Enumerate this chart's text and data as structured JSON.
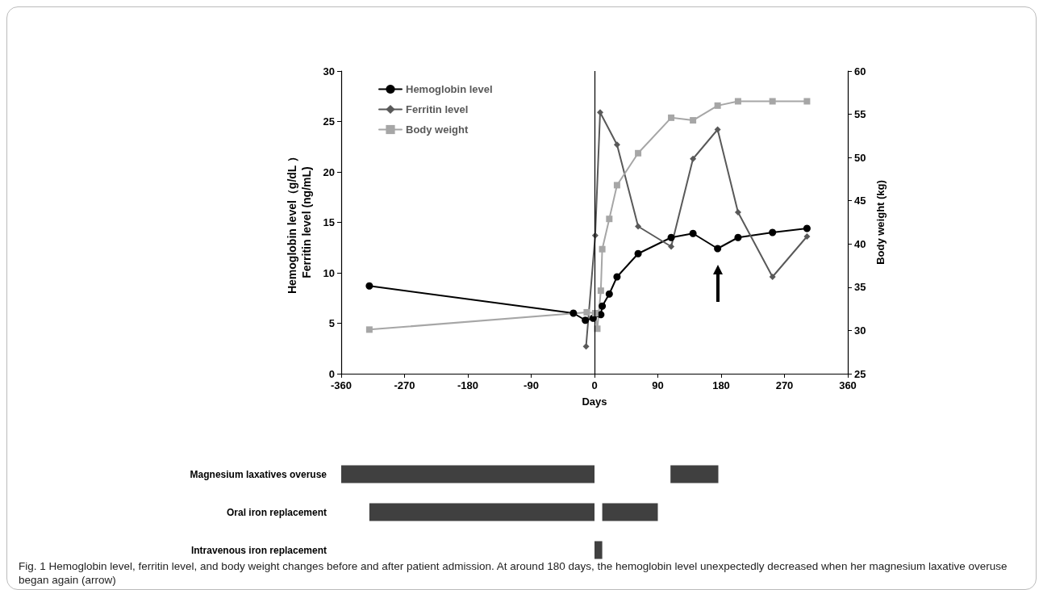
{
  "chart_data": [
    {
      "type": "line",
      "xlabel": "Days",
      "ylabel": "Hemoglobin level（g/dL ）\nFerritin level (ng/mL)",
      "y2label": "Body weight (kg)",
      "xlim": [
        -360,
        360
      ],
      "xticks": [
        -360,
        -270,
        -180,
        -90,
        0,
        90,
        180,
        270,
        360
      ],
      "ylim": [
        0,
        30
      ],
      "yticks": [
        0,
        5,
        10,
        15,
        20,
        25,
        30
      ],
      "y2lim": [
        25,
        60
      ],
      "y2ticks": [
        25,
        30,
        35,
        40,
        45,
        50,
        55,
        60
      ],
      "grid": false,
      "legend": "top left",
      "line_style": "solid",
      "series": [
        {
          "name": "Hemoglobin level",
          "color": "#000000",
          "marker": "circle",
          "x": [
            -320,
            -30,
            -13,
            -2,
            9,
            11,
            21,
            32,
            62,
            109,
            140,
            175,
            204,
            253,
            302
          ],
          "values": [
            8.7,
            6.0,
            5.3,
            5.5,
            5.85,
            6.7,
            7.9,
            9.6,
            11.9,
            13.5,
            13.9,
            12.4,
            13.5,
            14.0,
            14.4
          ]
        },
        {
          "name": "Ferritin level",
          "color": "#595959",
          "marker": "diamond",
          "x": [
            -12,
            1,
            8,
            32,
            62,
            109,
            140,
            175,
            204,
            253,
            302
          ],
          "values": [
            2.7,
            13.7,
            25.9,
            22.7,
            14.6,
            12.6,
            21.3,
            24.2,
            16.0,
            9.6,
            13.6
          ]
        },
        {
          "name": "Body weight",
          "color": "#a6a6a6",
          "marker": "square",
          "axis": "y2",
          "x": [
            -320,
            -11,
            1,
            4,
            9,
            11,
            21,
            32,
            62,
            109,
            140,
            175,
            204,
            253,
            302
          ],
          "values": [
            30.1,
            32.1,
            32.0,
            30.2,
            34.6,
            39.4,
            42.9,
            46.8,
            50.5,
            54.6,
            54.3,
            56.0,
            56.5,
            56.5,
            56.5
          ]
        }
      ],
      "ref_lines": [
        {
          "axis": "x",
          "value": 0,
          "color": "#000000"
        }
      ],
      "annotations": [
        "Fig. 1 Hemoglobin level, ferritin level, and body weight changes before and after patient admission. At around 180 days, the hemoglobin level unexpectedly decreased when her magnesium laxative overuse began again (arrow)"
      ]
    },
    {
      "type": "bar",
      "orientation": "horizontal",
      "categories": [
        "Magnesium laxatives overuse",
        "Oral iron replacement",
        "Intravenous iron replacement"
      ],
      "xlim": [
        -360,
        360
      ],
      "tick_labels": "y",
      "series": [
        {
          "color": "#404040",
          "base": [
            -360,
            -320,
            0
          ],
          "values": [
            360,
            320,
            11
          ]
        },
        {
          "color": "#404040",
          "base": [
            108,
            11,
            null
          ],
          "values": [
            68,
            79,
            null
          ]
        }
      ]
    }
  ]
}
